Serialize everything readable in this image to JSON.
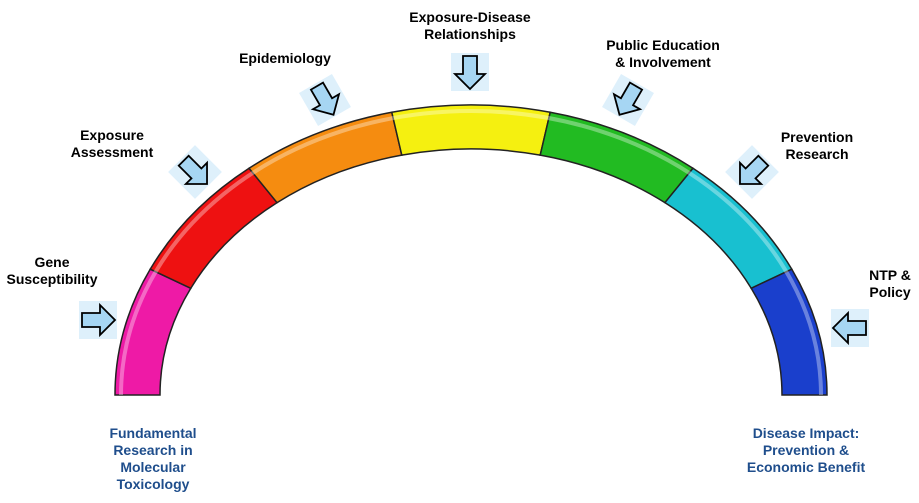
{
  "stages": [
    {
      "label": [
        "Gene",
        "Susceptibility"
      ],
      "color": "#ee1aa6"
    },
    {
      "label": [
        "Exposure",
        "Assessment"
      ],
      "color": "#ee1111"
    },
    {
      "label": [
        "Epidemiology"
      ],
      "color": "#f58c10"
    },
    {
      "label": [
        "Exposure-Disease",
        "Relationships"
      ],
      "color": "#f5f010"
    },
    {
      "label": [
        "Public Education",
        "& Involvement"
      ],
      "color": "#22bb22"
    },
    {
      "label": [
        "Prevention",
        "Research"
      ],
      "color": "#18c0d0"
    },
    {
      "label": [
        "NTP &",
        "Policy"
      ],
      "color": "#1a3fcc"
    }
  ],
  "start_label": [
    "Fundamental",
    "Research in",
    "Molecular",
    "Toxicology"
  ],
  "end_label": [
    "Disease Impact:",
    "Prevention &",
    "Economic Benefit"
  ]
}
